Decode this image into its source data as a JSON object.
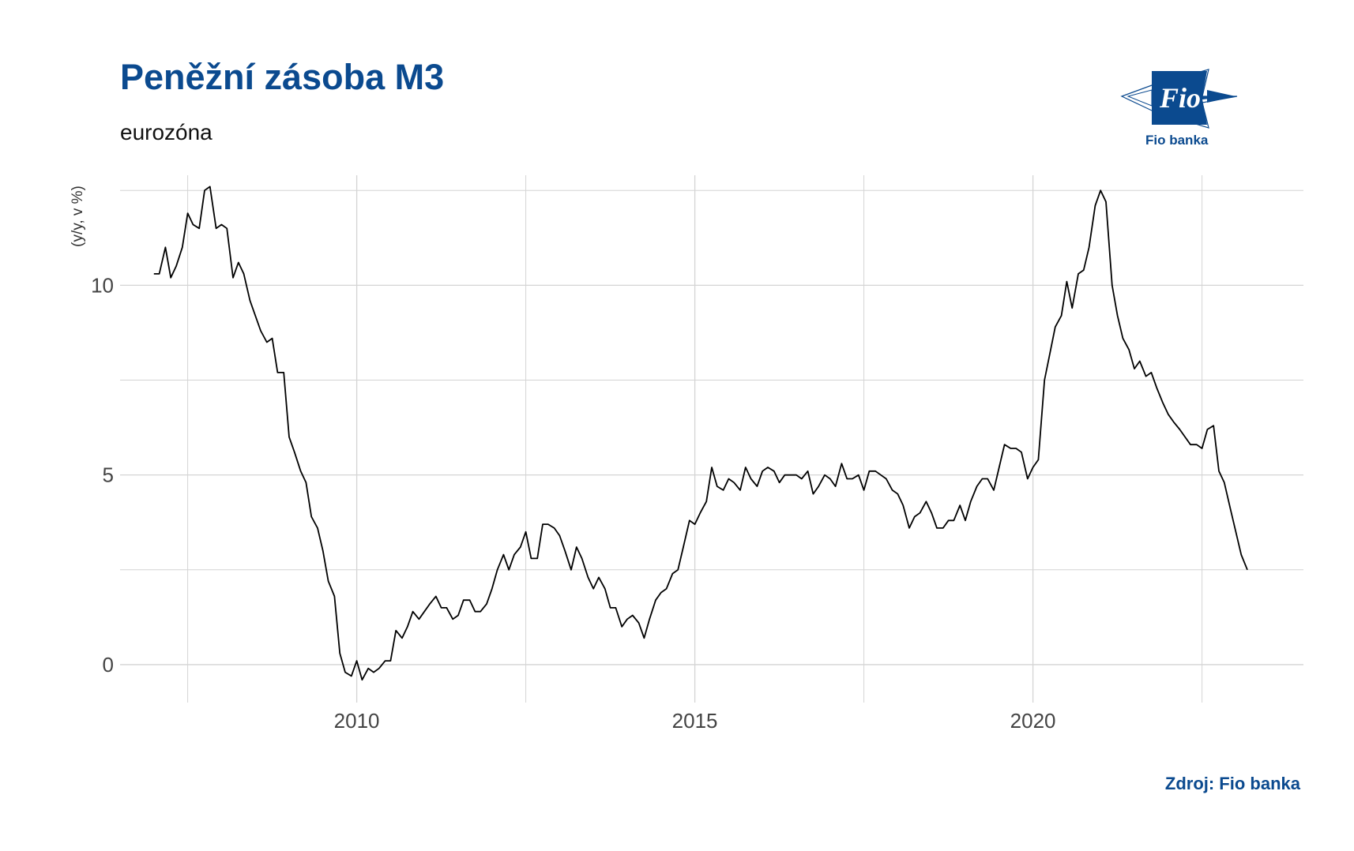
{
  "header": {
    "title": "Peněžní zásoba M3",
    "subtitle": "eurozóna",
    "logo_text": "Fio banka",
    "logo_mark": "Fio",
    "source": "Zdroj: Fio banka"
  },
  "colors": {
    "brand": "#0b4a8f",
    "line": "#000000",
    "grid": "#d4d4d4"
  },
  "chart_data": {
    "type": "line",
    "title": "Peněžní zásoba M3",
    "subtitle": "eurozóna",
    "ylabel": "(y/y, v %)",
    "xlabel": "",
    "xlim": [
      2006.5,
      2024.0
    ],
    "ylim": [
      -1.0,
      12.9
    ],
    "x_ticks": [
      2010,
      2015,
      2020
    ],
    "x_tick_labels": [
      "2010",
      "2015",
      "2020"
    ],
    "y_ticks": [
      0,
      5,
      10
    ],
    "y_tick_labels": [
      "0",
      "5",
      "10"
    ],
    "grid": true,
    "legend": "none",
    "series": [
      {
        "points": [
          [
            2007.0,
            10.3
          ],
          [
            2007.08,
            10.3
          ],
          [
            2007.17,
            11.0
          ],
          [
            2007.25,
            10.2
          ],
          [
            2007.33,
            10.5
          ],
          [
            2007.42,
            11.0
          ],
          [
            2007.5,
            11.9
          ],
          [
            2007.58,
            11.6
          ],
          [
            2007.67,
            11.5
          ],
          [
            2007.75,
            12.5
          ],
          [
            2007.83,
            12.6
          ],
          [
            2007.92,
            11.5
          ],
          [
            2008.0,
            11.6
          ],
          [
            2008.08,
            11.5
          ],
          [
            2008.17,
            10.2
          ],
          [
            2008.25,
            10.6
          ],
          [
            2008.33,
            10.3
          ],
          [
            2008.42,
            9.6
          ],
          [
            2008.5,
            9.2
          ],
          [
            2008.58,
            8.8
          ],
          [
            2008.67,
            8.5
          ],
          [
            2008.75,
            8.6
          ],
          [
            2008.83,
            7.7
          ],
          [
            2008.92,
            7.7
          ],
          [
            2009.0,
            6.0
          ],
          [
            2009.08,
            5.6
          ],
          [
            2009.17,
            5.1
          ],
          [
            2009.25,
            4.8
          ],
          [
            2009.33,
            3.9
          ],
          [
            2009.42,
            3.6
          ],
          [
            2009.5,
            3.0
          ],
          [
            2009.58,
            2.2
          ],
          [
            2009.67,
            1.8
          ],
          [
            2009.75,
            0.3
          ],
          [
            2009.83,
            -0.2
          ],
          [
            2009.92,
            -0.3
          ],
          [
            2010.0,
            0.1
          ],
          [
            2010.08,
            -0.4
          ],
          [
            2010.17,
            -0.1
          ],
          [
            2010.25,
            -0.2
          ],
          [
            2010.33,
            -0.1
          ],
          [
            2010.42,
            0.1
          ],
          [
            2010.5,
            0.1
          ],
          [
            2010.58,
            0.9
          ],
          [
            2010.67,
            0.7
          ],
          [
            2010.75,
            1.0
          ],
          [
            2010.83,
            1.4
          ],
          [
            2010.92,
            1.2
          ],
          [
            2011.0,
            1.4
          ],
          [
            2011.08,
            1.6
          ],
          [
            2011.17,
            1.8
          ],
          [
            2011.25,
            1.5
          ],
          [
            2011.33,
            1.5
          ],
          [
            2011.42,
            1.2
          ],
          [
            2011.5,
            1.3
          ],
          [
            2011.58,
            1.7
          ],
          [
            2011.67,
            1.7
          ],
          [
            2011.75,
            1.4
          ],
          [
            2011.83,
            1.4
          ],
          [
            2011.92,
            1.6
          ],
          [
            2012.0,
            2.0
          ],
          [
            2012.08,
            2.5
          ],
          [
            2012.17,
            2.9
          ],
          [
            2012.25,
            2.5
          ],
          [
            2012.33,
            2.9
          ],
          [
            2012.42,
            3.1
          ],
          [
            2012.5,
            3.5
          ],
          [
            2012.58,
            2.8
          ],
          [
            2012.67,
            2.8
          ],
          [
            2012.75,
            3.7
          ],
          [
            2012.83,
            3.7
          ],
          [
            2012.92,
            3.6
          ],
          [
            2013.0,
            3.4
          ],
          [
            2013.08,
            3.0
          ],
          [
            2013.17,
            2.5
          ],
          [
            2013.25,
            3.1
          ],
          [
            2013.33,
            2.8
          ],
          [
            2013.42,
            2.3
          ],
          [
            2013.5,
            2.0
          ],
          [
            2013.58,
            2.3
          ],
          [
            2013.67,
            2.0
          ],
          [
            2013.75,
            1.5
          ],
          [
            2013.83,
            1.5
          ],
          [
            2013.92,
            1.0
          ],
          [
            2014.0,
            1.2
          ],
          [
            2014.08,
            1.3
          ],
          [
            2014.17,
            1.1
          ],
          [
            2014.25,
            0.7
          ],
          [
            2014.33,
            1.2
          ],
          [
            2014.42,
            1.7
          ],
          [
            2014.5,
            1.9
          ],
          [
            2014.58,
            2.0
          ],
          [
            2014.67,
            2.4
          ],
          [
            2014.75,
            2.5
          ],
          [
            2014.83,
            3.1
          ],
          [
            2014.92,
            3.8
          ],
          [
            2015.0,
            3.7
          ],
          [
            2015.08,
            4.0
          ],
          [
            2015.17,
            4.3
          ],
          [
            2015.25,
            5.2
          ],
          [
            2015.33,
            4.7
          ],
          [
            2015.42,
            4.6
          ],
          [
            2015.5,
            4.9
          ],
          [
            2015.58,
            4.8
          ],
          [
            2015.67,
            4.6
          ],
          [
            2015.75,
            5.2
          ],
          [
            2015.83,
            4.9
          ],
          [
            2015.92,
            4.7
          ],
          [
            2016.0,
            5.1
          ],
          [
            2016.08,
            5.2
          ],
          [
            2016.17,
            5.1
          ],
          [
            2016.25,
            4.8
          ],
          [
            2016.33,
            5.0
          ],
          [
            2016.42,
            5.0
          ],
          [
            2016.5,
            5.0
          ],
          [
            2016.58,
            4.9
          ],
          [
            2016.67,
            5.1
          ],
          [
            2016.75,
            4.5
          ],
          [
            2016.83,
            4.7
          ],
          [
            2016.92,
            5.0
          ],
          [
            2017.0,
            4.9
          ],
          [
            2017.08,
            4.7
          ],
          [
            2017.17,
            5.3
          ],
          [
            2017.25,
            4.9
          ],
          [
            2017.33,
            4.9
          ],
          [
            2017.42,
            5.0
          ],
          [
            2017.5,
            4.6
          ],
          [
            2017.58,
            5.1
          ],
          [
            2017.67,
            5.1
          ],
          [
            2017.75,
            5.0
          ],
          [
            2017.83,
            4.9
          ],
          [
            2017.92,
            4.6
          ],
          [
            2018.0,
            4.5
          ],
          [
            2018.08,
            4.2
          ],
          [
            2018.17,
            3.6
          ],
          [
            2018.25,
            3.9
          ],
          [
            2018.33,
            4.0
          ],
          [
            2018.42,
            4.3
          ],
          [
            2018.5,
            4.0
          ],
          [
            2018.58,
            3.6
          ],
          [
            2018.67,
            3.6
          ],
          [
            2018.75,
            3.8
          ],
          [
            2018.83,
            3.8
          ],
          [
            2018.92,
            4.2
          ],
          [
            2019.0,
            3.8
          ],
          [
            2019.08,
            4.3
          ],
          [
            2019.17,
            4.7
          ],
          [
            2019.25,
            4.9
          ],
          [
            2019.33,
            4.9
          ],
          [
            2019.42,
            4.6
          ],
          [
            2019.5,
            5.2
          ],
          [
            2019.58,
            5.8
          ],
          [
            2019.67,
            5.7
          ],
          [
            2019.75,
            5.7
          ],
          [
            2019.83,
            5.6
          ],
          [
            2019.92,
            4.9
          ],
          [
            2020.0,
            5.2
          ],
          [
            2020.08,
            5.4
          ],
          [
            2020.17,
            7.5
          ],
          [
            2020.25,
            8.2
          ],
          [
            2020.33,
            8.9
          ],
          [
            2020.42,
            9.2
          ],
          [
            2020.5,
            10.1
          ],
          [
            2020.58,
            9.4
          ],
          [
            2020.67,
            10.3
          ],
          [
            2020.75,
            10.4
          ],
          [
            2020.83,
            11.0
          ],
          [
            2020.92,
            12.1
          ],
          [
            2021.0,
            12.5
          ],
          [
            2021.08,
            12.2
          ],
          [
            2021.17,
            10.0
          ],
          [
            2021.25,
            9.2
          ],
          [
            2021.33,
            8.6
          ],
          [
            2021.42,
            8.3
          ],
          [
            2021.5,
            7.8
          ],
          [
            2021.58,
            8.0
          ],
          [
            2021.67,
            7.6
          ],
          [
            2021.75,
            7.7
          ],
          [
            2021.83,
            7.3
          ],
          [
            2021.92,
            6.9
          ],
          [
            2022.0,
            6.6
          ],
          [
            2022.08,
            6.4
          ],
          [
            2022.17,
            6.2
          ],
          [
            2022.25,
            6.0
          ],
          [
            2022.33,
            5.8
          ],
          [
            2022.42,
            5.8
          ],
          [
            2022.5,
            5.7
          ],
          [
            2022.58,
            6.2
          ],
          [
            2022.67,
            6.3
          ],
          [
            2022.75,
            5.1
          ],
          [
            2022.83,
            4.8
          ],
          [
            2022.92,
            4.1
          ],
          [
            2023.0,
            3.5
          ],
          [
            2023.08,
            2.9
          ],
          [
            2023.17,
            2.5
          ]
        ]
      }
    ]
  }
}
